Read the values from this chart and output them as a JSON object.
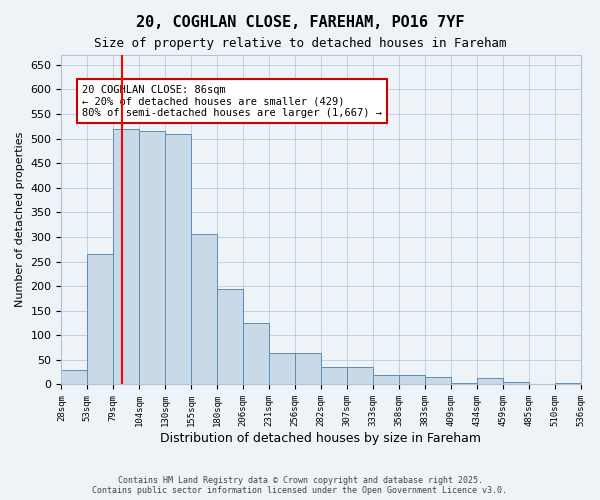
{
  "title_line1": "20, COGHLAN CLOSE, FAREHAM, PO16 7YF",
  "title_line2": "Size of property relative to detached houses in Fareham",
  "xlabel": "Distribution of detached houses by size in Fareham",
  "ylabel": "Number of detached properties",
  "bin_labels": [
    "28sqm",
    "53sqm",
    "79sqm",
    "104sqm",
    "130sqm",
    "155sqm",
    "180sqm",
    "206sqm",
    "231sqm",
    "256sqm",
    "282sqm",
    "307sqm",
    "333sqm",
    "358sqm",
    "383sqm",
    "409sqm",
    "434sqm",
    "459sqm",
    "485sqm",
    "510sqm",
    "536sqm"
  ],
  "bar_values": [
    30,
    265,
    519,
    515,
    510,
    305,
    195,
    125,
    65,
    65,
    35,
    35,
    20,
    20,
    15,
    3,
    13,
    5,
    0,
    3
  ],
  "bar_color": "#c9d9e8",
  "bar_edgecolor": "#5b8db8",
  "red_line_x": 2,
  "red_line_label": "86sqm",
  "annotation_text": "20 COGHLAN CLOSE: 86sqm\n← 20% of detached houses are smaller (429)\n80% of semi-detached houses are larger (1,667) →",
  "annotation_box_color": "#ffffff",
  "annotation_box_edgecolor": "#cc0000",
  "ylim": [
    0,
    670
  ],
  "yticks": [
    0,
    50,
    100,
    150,
    200,
    250,
    300,
    350,
    400,
    450,
    500,
    550,
    600,
    650
  ],
  "footer_line1": "Contains HM Land Registry data © Crown copyright and database right 2025.",
  "footer_line2": "Contains public sector information licensed under the Open Government Licence v3.0.",
  "background_color": "#eef3f8",
  "plot_background": "#eef3f8"
}
